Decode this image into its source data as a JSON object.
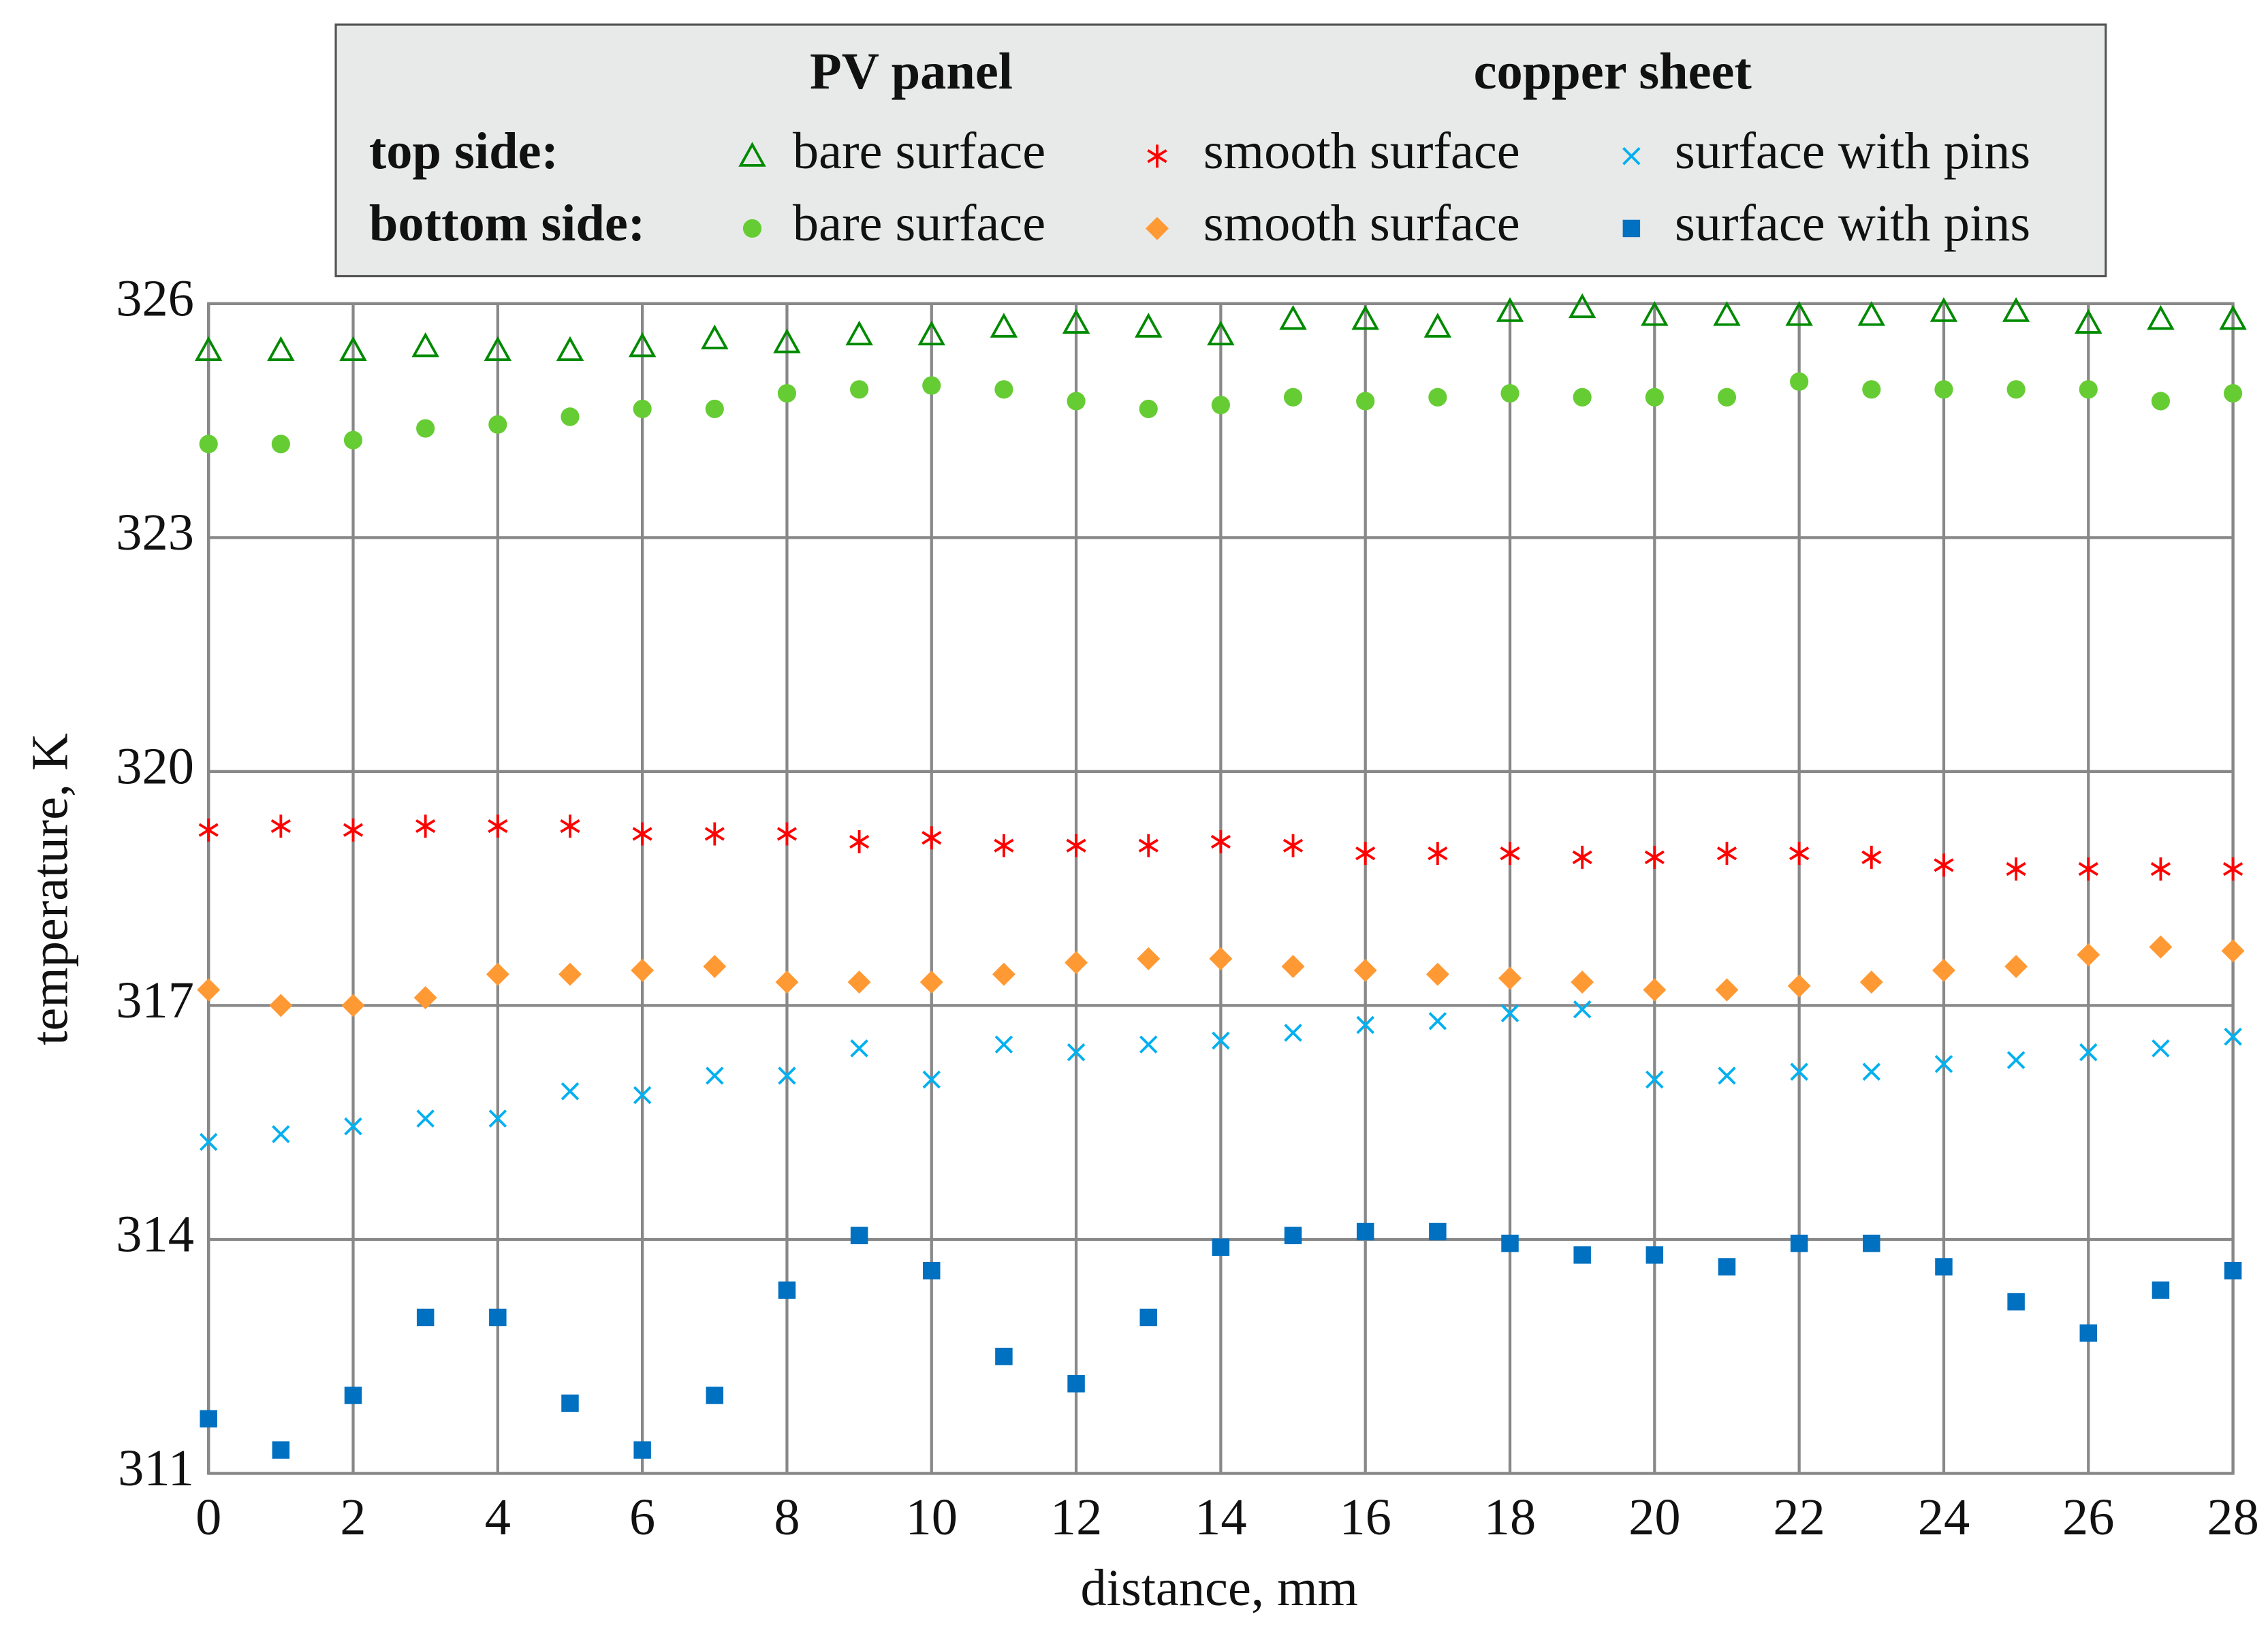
{
  "chart_data": {
    "type": "scatter",
    "xlabel": "distance, mm",
    "ylabel": "temperature, K",
    "xlim": [
      0,
      28
    ],
    "ylim": [
      311,
      326
    ],
    "xticks": [
      0,
      2,
      4,
      6,
      8,
      10,
      12,
      14,
      16,
      18,
      20,
      22,
      24,
      26,
      28
    ],
    "yticks": [
      311,
      314,
      317,
      320,
      323,
      326
    ],
    "grid": true,
    "legend_columns": [
      "PV panel",
      "copper sheet"
    ],
    "legend_rows": [
      "top side:",
      "bottom side:"
    ],
    "x": [
      0,
      1,
      2,
      3,
      4,
      5,
      6,
      7,
      8,
      9,
      10,
      11,
      12,
      13,
      14,
      15,
      16,
      17,
      18,
      19,
      20,
      21,
      22,
      23,
      24,
      25,
      26,
      27,
      28
    ],
    "series": [
      {
        "name": "bare surface",
        "color": "#008a00",
        "marker": "triangle",
        "values": [
          325.4,
          325.4,
          325.4,
          325.45,
          325.4,
          325.4,
          325.45,
          325.55,
          325.5,
          325.6,
          325.6,
          325.7,
          325.75,
          325.7,
          325.6,
          325.8,
          325.8,
          325.7,
          325.9,
          325.95,
          325.85,
          325.85,
          325.85,
          325.85,
          325.9,
          325.9,
          325.75,
          325.8,
          325.8
        ]
      },
      {
        "name": "smooth surface",
        "color": "#ff0000",
        "marker": "star",
        "values": [
          319.25,
          319.3,
          319.25,
          319.3,
          319.3,
          319.3,
          319.2,
          319.2,
          319.2,
          319.1,
          319.15,
          319.05,
          319.05,
          319.05,
          319.1,
          319.05,
          318.95,
          318.95,
          318.95,
          318.9,
          318.9,
          318.95,
          318.95,
          318.9,
          318.8,
          318.75,
          318.75,
          318.75,
          318.75
        ]
      },
      {
        "name": "surface with pins",
        "color": "#00b0f0",
        "marker": "x",
        "values": [
          315.25,
          315.35,
          315.45,
          315.55,
          315.55,
          315.9,
          315.85,
          316.1,
          316.1,
          316.45,
          316.05,
          316.5,
          316.4,
          316.5,
          316.55,
          316.65,
          316.75,
          316.8,
          316.9,
          316.95,
          316.05,
          316.1,
          316.15,
          316.15,
          316.25,
          316.3,
          316.4,
          316.45,
          316.6
        ]
      },
      {
        "name": "bare surface",
        "color": "#66cc33",
        "marker": "circle",
        "values": [
          324.2,
          324.2,
          324.25,
          324.4,
          324.45,
          324.55,
          324.65,
          324.65,
          324.85,
          324.9,
          324.95,
          324.9,
          324.75,
          324.65,
          324.7,
          324.8,
          324.75,
          324.8,
          324.85,
          324.8,
          324.8,
          324.8,
          325.0,
          324.9,
          324.9,
          324.9,
          324.9,
          324.75,
          324.85
        ]
      },
      {
        "name": "smooth surface",
        "color": "#ff9933",
        "marker": "diamond",
        "values": [
          317.2,
          317.0,
          317.0,
          317.1,
          317.4,
          317.4,
          317.45,
          317.5,
          317.3,
          317.3,
          317.3,
          317.4,
          317.55,
          317.6,
          317.6,
          317.5,
          317.45,
          317.4,
          317.35,
          317.3,
          317.2,
          317.2,
          317.25,
          317.3,
          317.45,
          317.5,
          317.65,
          317.75,
          317.7
        ]
      },
      {
        "name": "surface with pins",
        "color": "#0070c0",
        "marker": "square",
        "values": [
          311.7,
          311.3,
          312.0,
          313.0,
          313.0,
          311.9,
          311.3,
          312.0,
          313.35,
          314.05,
          313.6,
          312.5,
          312.15,
          313.0,
          313.9,
          314.05,
          314.1,
          314.1,
          313.95,
          313.8,
          313.8,
          313.65,
          313.95,
          313.95,
          313.65,
          313.2,
          312.8,
          313.35,
          313.6
        ]
      }
    ]
  }
}
